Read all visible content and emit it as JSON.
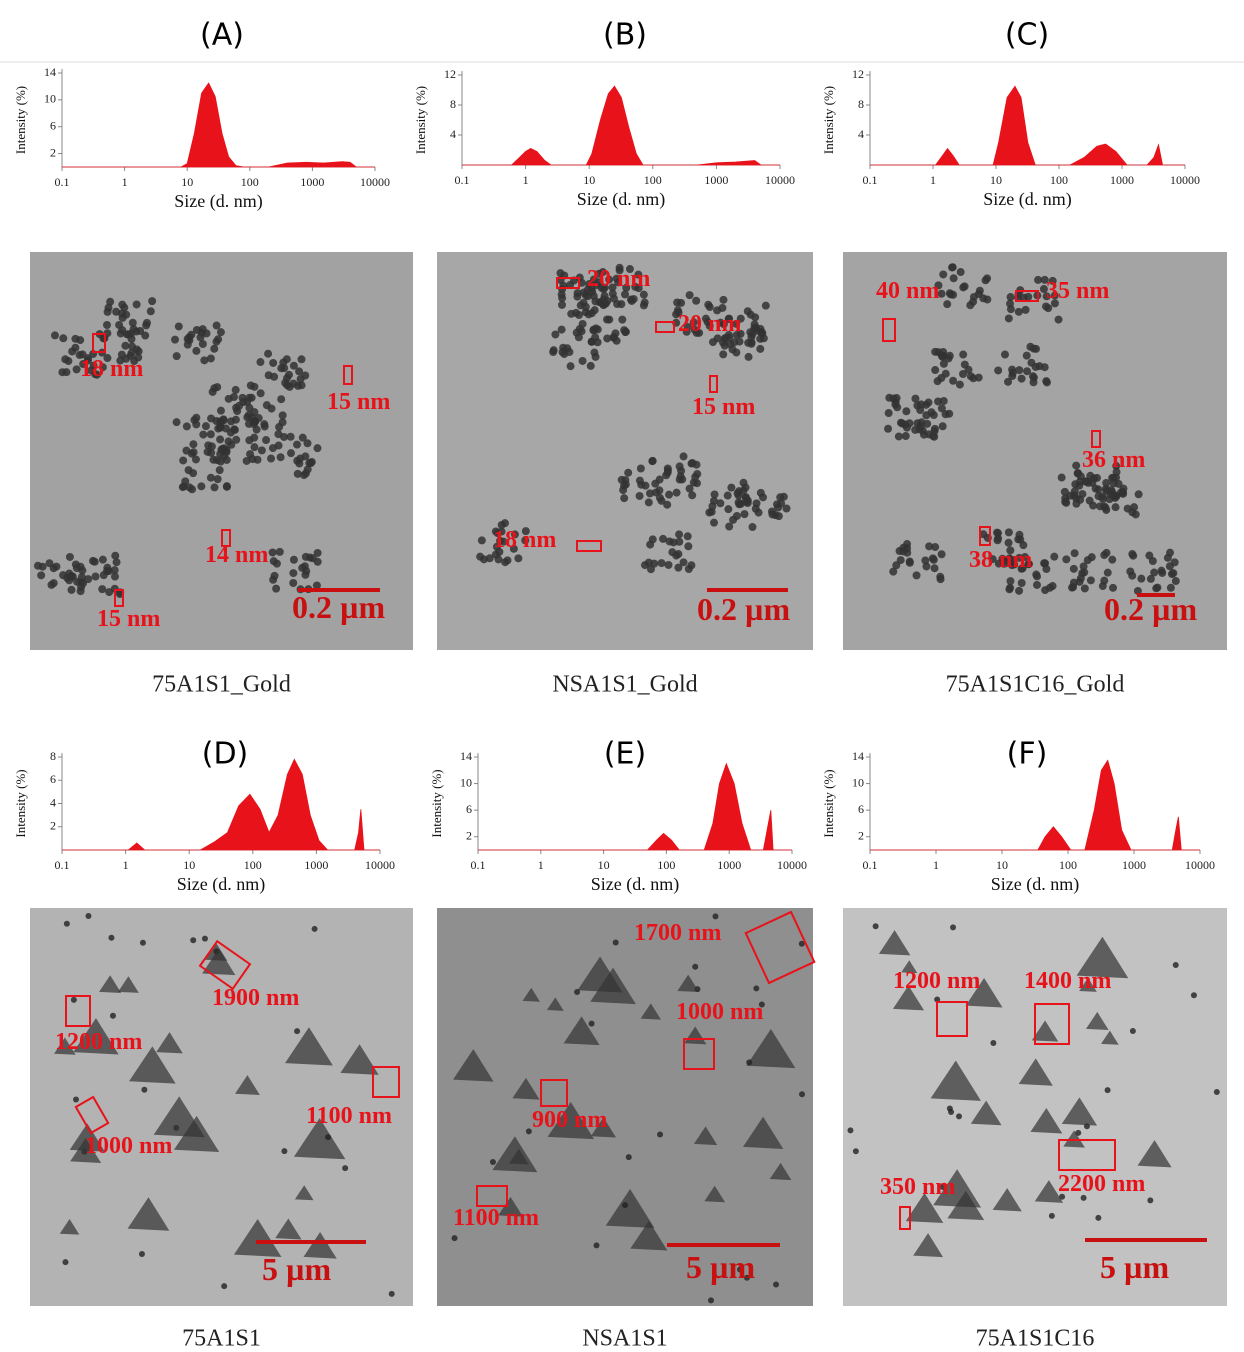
{
  "chart_data": [
    {
      "type": "area",
      "title": "(A)",
      "xlabel": "Size (d. nm)",
      "ylabel": "Intensity (%)",
      "xscale": "log",
      "color": "#e8121a",
      "xlim": [
        0.1,
        10000
      ],
      "xticks": [
        0.1,
        1,
        10,
        100,
        1000,
        10000
      ],
      "ylim": [
        0,
        14
      ],
      "yticks": [
        2,
        6,
        10,
        14
      ],
      "x": [
        0.1,
        8,
        10,
        13,
        17,
        22,
        28,
        36,
        46,
        60,
        80,
        200,
        400,
        800,
        1500,
        3000,
        4000,
        5000,
        10000
      ],
      "values": [
        0,
        0,
        0.5,
        5,
        11,
        12.5,
        10.5,
        5,
        1.5,
        0.2,
        0,
        0,
        0.6,
        0.7,
        0.6,
        0.8,
        0.7,
        0,
        0
      ]
    },
    {
      "type": "area",
      "title": "(B)",
      "xlabel": "Size (d. nm)",
      "ylabel": "Intensity (%)",
      "xscale": "log",
      "color": "#e8121a",
      "xlim": [
        0.1,
        10000
      ],
      "xticks": [
        0.1,
        1,
        10,
        100,
        1000,
        10000
      ],
      "ylim": [
        0,
        12
      ],
      "yticks": [
        4,
        8,
        12
      ],
      "x": [
        0.1,
        0.6,
        0.8,
        1,
        1.2,
        1.5,
        2,
        2.5,
        9,
        11,
        15,
        20,
        25,
        32,
        42,
        55,
        70,
        500,
        1000,
        2000,
        4000,
        5000,
        10000
      ],
      "values": [
        0,
        0,
        1,
        1.8,
        2.2,
        1.8,
        0.6,
        0,
        0,
        1.5,
        6,
        9.5,
        10.5,
        9,
        5,
        1.5,
        0,
        0,
        0.3,
        0.4,
        0.6,
        0,
        0
      ]
    },
    {
      "type": "area",
      "title": "(C)",
      "xlabel": "Size (d. nm)",
      "ylabel": "Intensity (%)",
      "xscale": "log",
      "color": "#e8121a",
      "xlim": [
        0.1,
        10000
      ],
      "xticks": [
        0.1,
        1,
        10,
        100,
        1000,
        10000
      ],
      "ylim": [
        0,
        12
      ],
      "yticks": [
        4,
        8,
        12
      ],
      "x": [
        0.1,
        1.1,
        1.4,
        1.7,
        2.1,
        2.6,
        9,
        11,
        15,
        20,
        25,
        32,
        42,
        150,
        250,
        400,
        550,
        800,
        1200,
        2500,
        3200,
        3800,
        4400,
        10000
      ],
      "values": [
        0,
        0,
        1.2,
        2.2,
        1.2,
        0,
        0,
        3,
        9,
        10.5,
        9,
        3,
        0,
        0,
        1,
        2.5,
        2.8,
        1.8,
        0,
        0,
        1,
        2.7,
        0,
        0
      ]
    },
    {
      "type": "area",
      "title": "(D)",
      "xlabel": "Size (d. nm)",
      "ylabel": "Intensity (%)",
      "xscale": "log",
      "color": "#e8121a",
      "xlim": [
        0.1,
        10000
      ],
      "xticks": [
        0.1,
        1,
        10,
        100,
        1000,
        10000
      ],
      "ylim": [
        0,
        8
      ],
      "yticks": [
        2,
        4,
        6,
        8
      ],
      "x": [
        0.1,
        1.1,
        1.5,
        2,
        15,
        25,
        40,
        60,
        90,
        130,
        180,
        250,
        350,
        450,
        600,
        800,
        1100,
        1500,
        4000,
        4600,
        5000,
        5600,
        10000
      ],
      "values": [
        0,
        0,
        0.6,
        0,
        0,
        0.7,
        1.5,
        3.8,
        4.8,
        3.5,
        1.5,
        3,
        6.5,
        7.8,
        6.5,
        3,
        0.8,
        0,
        0,
        1.5,
        3.5,
        0,
        0
      ]
    },
    {
      "type": "area",
      "title": "(E)",
      "xlabel": "Size (d. nm)",
      "ylabel": "Intensity (%)",
      "xscale": "log",
      "color": "#e8121a",
      "xlim": [
        0.1,
        10000
      ],
      "xticks": [
        0.1,
        1,
        10,
        100,
        1000,
        10000
      ],
      "ylim": [
        0,
        14
      ],
      "yticks": [
        2,
        6,
        10,
        14
      ],
      "x": [
        0.1,
        50,
        70,
        90,
        120,
        160,
        400,
        550,
        700,
        900,
        1200,
        1600,
        2200,
        3500,
        4200,
        4600,
        5000,
        10000
      ],
      "values": [
        0,
        0,
        1.5,
        2.5,
        1.5,
        0,
        0,
        4,
        10,
        13,
        10,
        4,
        0,
        0,
        4,
        6,
        0,
        0
      ]
    },
    {
      "type": "area",
      "title": "(F)",
      "xlabel": "Size (d. nm)",
      "ylabel": "Intensity (%)",
      "xscale": "log",
      "color": "#e8121a",
      "xlim": [
        0.1,
        10000
      ],
      "xticks": [
        0.1,
        1,
        10,
        100,
        1000,
        10000
      ],
      "ylim": [
        0,
        14
      ],
      "yticks": [
        2,
        6,
        10,
        14
      ],
      "x": [
        0.1,
        35,
        45,
        60,
        80,
        110,
        180,
        250,
        320,
        400,
        500,
        650,
        900,
        3800,
        4300,
        4700,
        5200,
        10000
      ],
      "values": [
        0,
        0,
        2,
        3.5,
        2,
        0,
        0,
        6,
        12,
        13.5,
        10,
        3,
        0,
        0,
        3,
        5,
        0,
        0
      ]
    }
  ],
  "images": [
    {
      "caption": "75A1S1_Gold",
      "scale_bar": "0.2 µm",
      "annotations": [
        "18 nm",
        "15 nm",
        "14 nm",
        "15 nm"
      ]
    },
    {
      "caption": "NSA1S1_Gold",
      "scale_bar": "0.2 µm",
      "annotations": [
        "20 nm",
        "20 nm",
        "15 nm",
        "18 nm"
      ]
    },
    {
      "caption": "75A1S1C16_Gold",
      "scale_bar": "0.2 µm",
      "annotations": [
        "40 nm",
        "35 nm",
        "36 nm",
        "38 nm"
      ]
    },
    {
      "caption": "75A1S1",
      "scale_bar": "5 µm",
      "annotations": [
        "1900 nm",
        "1200 nm",
        "1100 nm",
        "1000 nm"
      ]
    },
    {
      "caption": "NSA1S1",
      "scale_bar": "5 µm",
      "annotations": [
        "1700 nm",
        "1000 nm",
        "900 nm",
        "1100 nm"
      ]
    },
    {
      "caption": "75A1S1C16",
      "scale_bar": "5 µm",
      "annotations": [
        "1200 nm",
        "1400 nm",
        "2200 nm",
        "350 nm"
      ]
    }
  ]
}
